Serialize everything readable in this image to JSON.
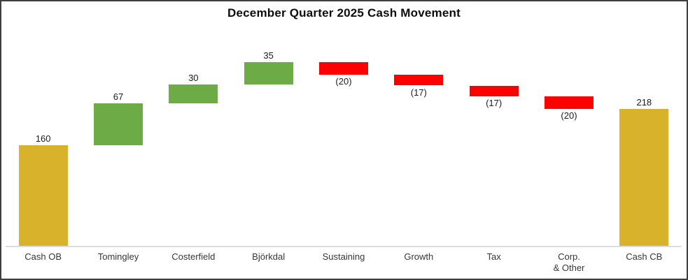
{
  "chart_data": {
    "type": "bar",
    "subtype": "waterfall",
    "title": "December Quarter 2025 Cash Movement",
    "categories": [
      "Cash OB",
      "Tomingley",
      "Costerfield",
      "Björkdal",
      "Sustaining",
      "Growth",
      "Tax",
      "Corp. & Other",
      "Cash CB"
    ],
    "bars": [
      {
        "label": "Cash OB",
        "label_lines": [
          "Cash OB"
        ],
        "kind": "total",
        "value": 160,
        "display": "160",
        "start": 0,
        "end": 160
      },
      {
        "label": "Tomingley",
        "label_lines": [
          "Tomingley"
        ],
        "kind": "increase",
        "value": 67,
        "display": "67",
        "start": 160,
        "end": 227
      },
      {
        "label": "Costerfield",
        "label_lines": [
          "Costerfield"
        ],
        "kind": "increase",
        "value": 30,
        "display": "30",
        "start": 227,
        "end": 257
      },
      {
        "label": "Björkdal",
        "label_lines": [
          "Björkdal"
        ],
        "kind": "increase",
        "value": 35,
        "display": "35",
        "start": 257,
        "end": 292
      },
      {
        "label": "Sustaining",
        "label_lines": [
          "Sustaining"
        ],
        "kind": "decrease",
        "value": -20,
        "display": "(20)",
        "start": 292,
        "end": 272
      },
      {
        "label": "Growth",
        "label_lines": [
          "Growth"
        ],
        "kind": "decrease",
        "value": -17,
        "display": "(17)",
        "start": 272,
        "end": 255
      },
      {
        "label": "Tax",
        "label_lines": [
          "Tax"
        ],
        "kind": "decrease",
        "value": -17,
        "display": "(17)",
        "start": 255,
        "end": 238
      },
      {
        "label": "Corp. & Other",
        "label_lines": [
          "Corp.",
          "& Other"
        ],
        "kind": "decrease",
        "value": -20,
        "display": "(20)",
        "start": 238,
        "end": 218
      },
      {
        "label": "Cash CB",
        "label_lines": [
          "Cash CB"
        ],
        "kind": "total",
        "value": 218,
        "display": "218",
        "start": 0,
        "end": 218
      }
    ],
    "colors": {
      "total": "#d9b22b",
      "increase": "#6dab47",
      "decrease": "#fd0000"
    },
    "frame_border_color": "#3f3f3f",
    "axis_line_color": "#dcdcdc",
    "value_label_format": "negatives shown in parentheses below bar",
    "ylim": [
      0,
      340
    ],
    "grid": false,
    "legend": null,
    "xlabel": "",
    "ylabel": ""
  }
}
